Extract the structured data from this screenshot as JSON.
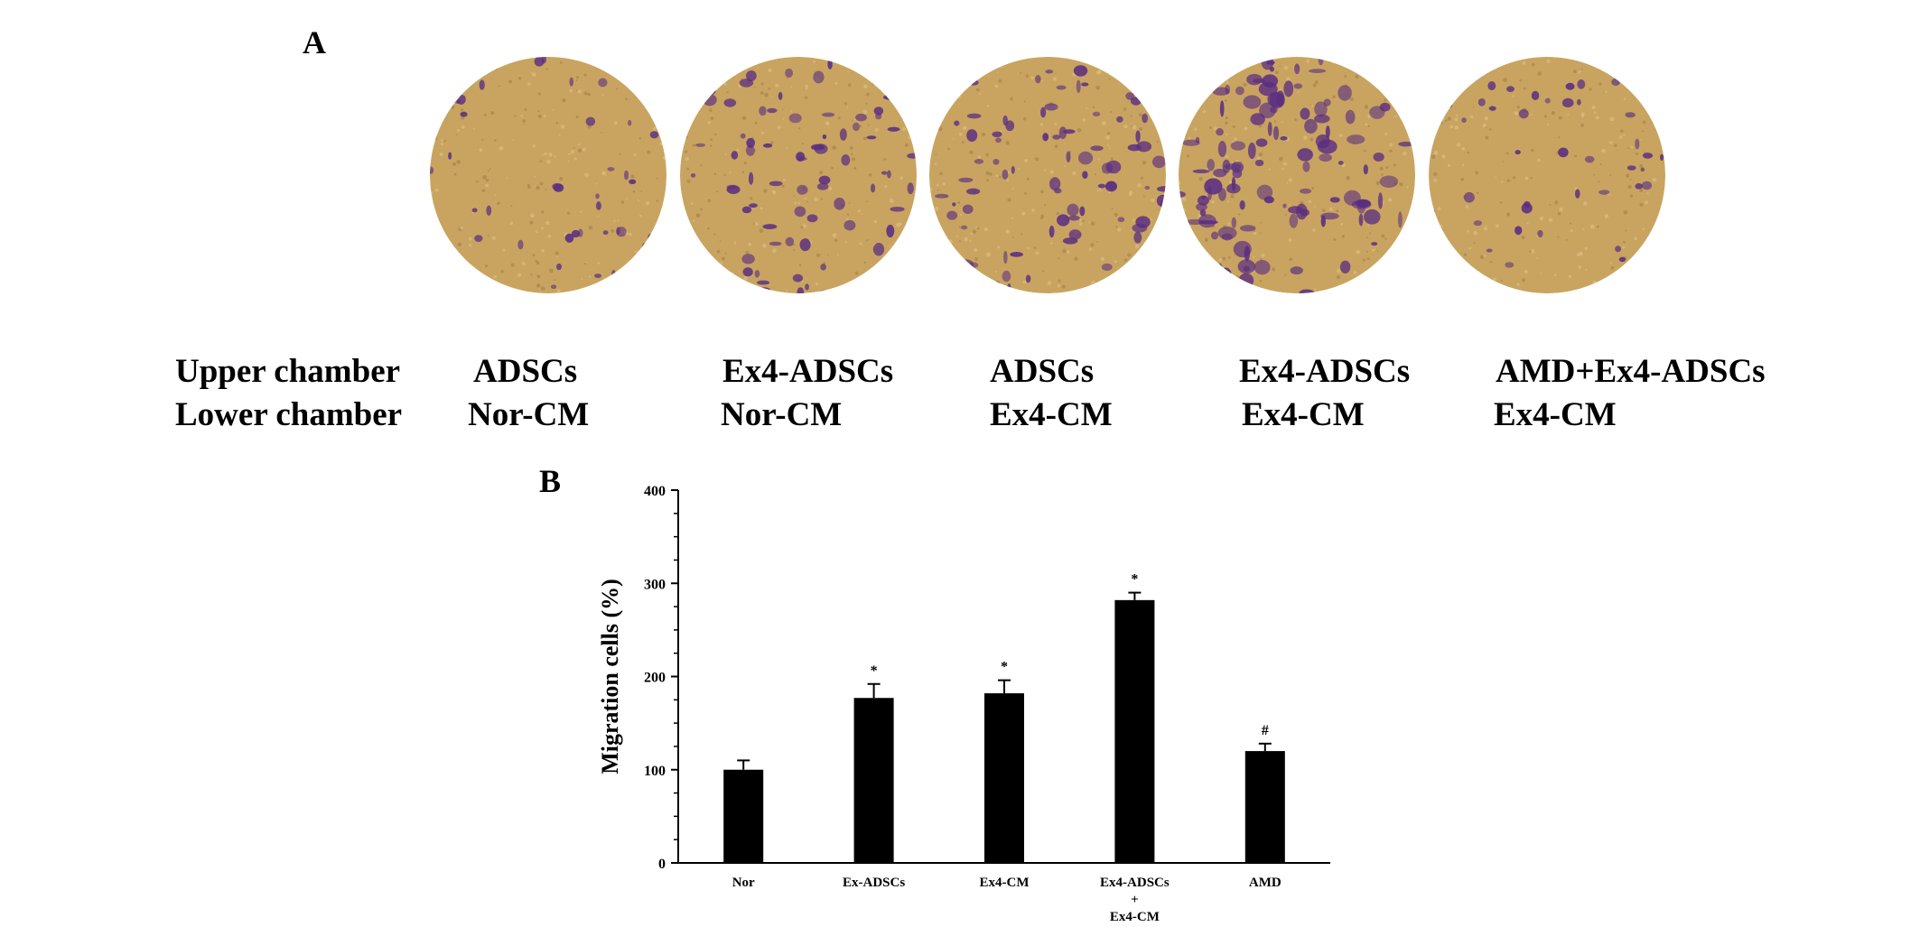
{
  "panels": {
    "a_label": "A",
    "b_label": "B"
  },
  "micrographs": [
    {
      "upper": "ADSCs",
      "lower": "Nor-CM",
      "stain_density": 0.15
    },
    {
      "upper": "Ex4-ADSCs",
      "lower": "Nor-CM",
      "stain_density": 0.45
    },
    {
      "upper": "ADSCs",
      "lower": "Ex4-CM",
      "stain_density": 0.5
    },
    {
      "upper": "Ex4-ADSCs",
      "lower": "Ex4-CM",
      "stain_density": 0.85
    },
    {
      "upper": "AMD+Ex4-ADSCs",
      "lower": "Ex4-CM",
      "stain_density": 0.2
    }
  ],
  "row_labels": {
    "upper": "Upper chamber",
    "lower": "Lower chamber"
  },
  "colors": {
    "background_tan": "#c9a460",
    "stain_purple": "#5a2d82",
    "bar": "#000000"
  },
  "chart_data": {
    "type": "bar",
    "categories": [
      "Nor",
      "Ex-ADSCs",
      "Ex4-CM",
      "Ex4-ADSCs\n+\nEx4-CM",
      "AMD"
    ],
    "values": [
      100,
      177,
      182,
      282,
      120
    ],
    "errors": [
      10,
      15,
      14,
      8,
      8
    ],
    "annotations": [
      "",
      "*",
      "*",
      "*",
      "#"
    ],
    "ylabel": "Migration cells (%)",
    "xlabel": "",
    "ylim": [
      0,
      400
    ],
    "yticks": [
      0,
      100,
      200,
      300,
      400
    ]
  }
}
